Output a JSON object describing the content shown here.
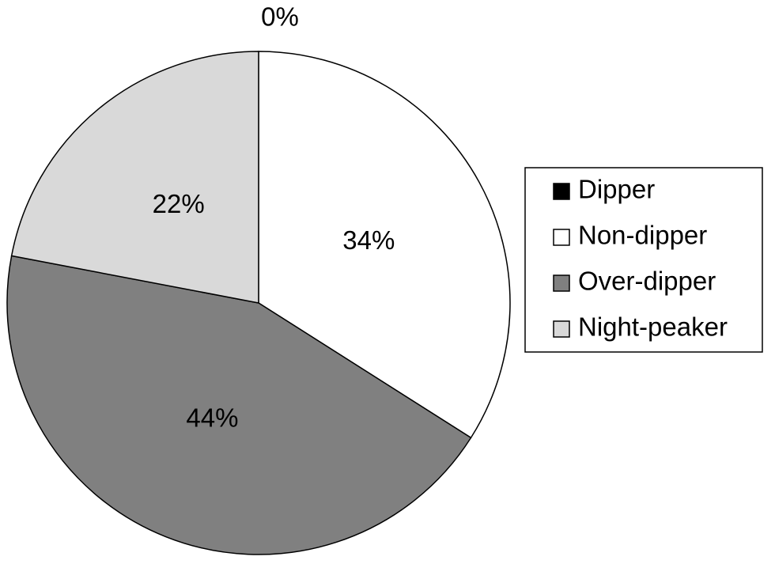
{
  "chart_data": {
    "type": "pie",
    "categories": [
      "Dipper",
      "Non-dipper",
      "Over-dipper",
      "Night-peaker"
    ],
    "values": [
      0,
      34,
      44,
      22
    ],
    "value_labels": [
      "0%",
      "34%",
      "44%",
      "22%"
    ],
    "colors": [
      "#000000",
      "#ffffff",
      "#808080",
      "#d9d9d9"
    ],
    "legend": "right"
  }
}
